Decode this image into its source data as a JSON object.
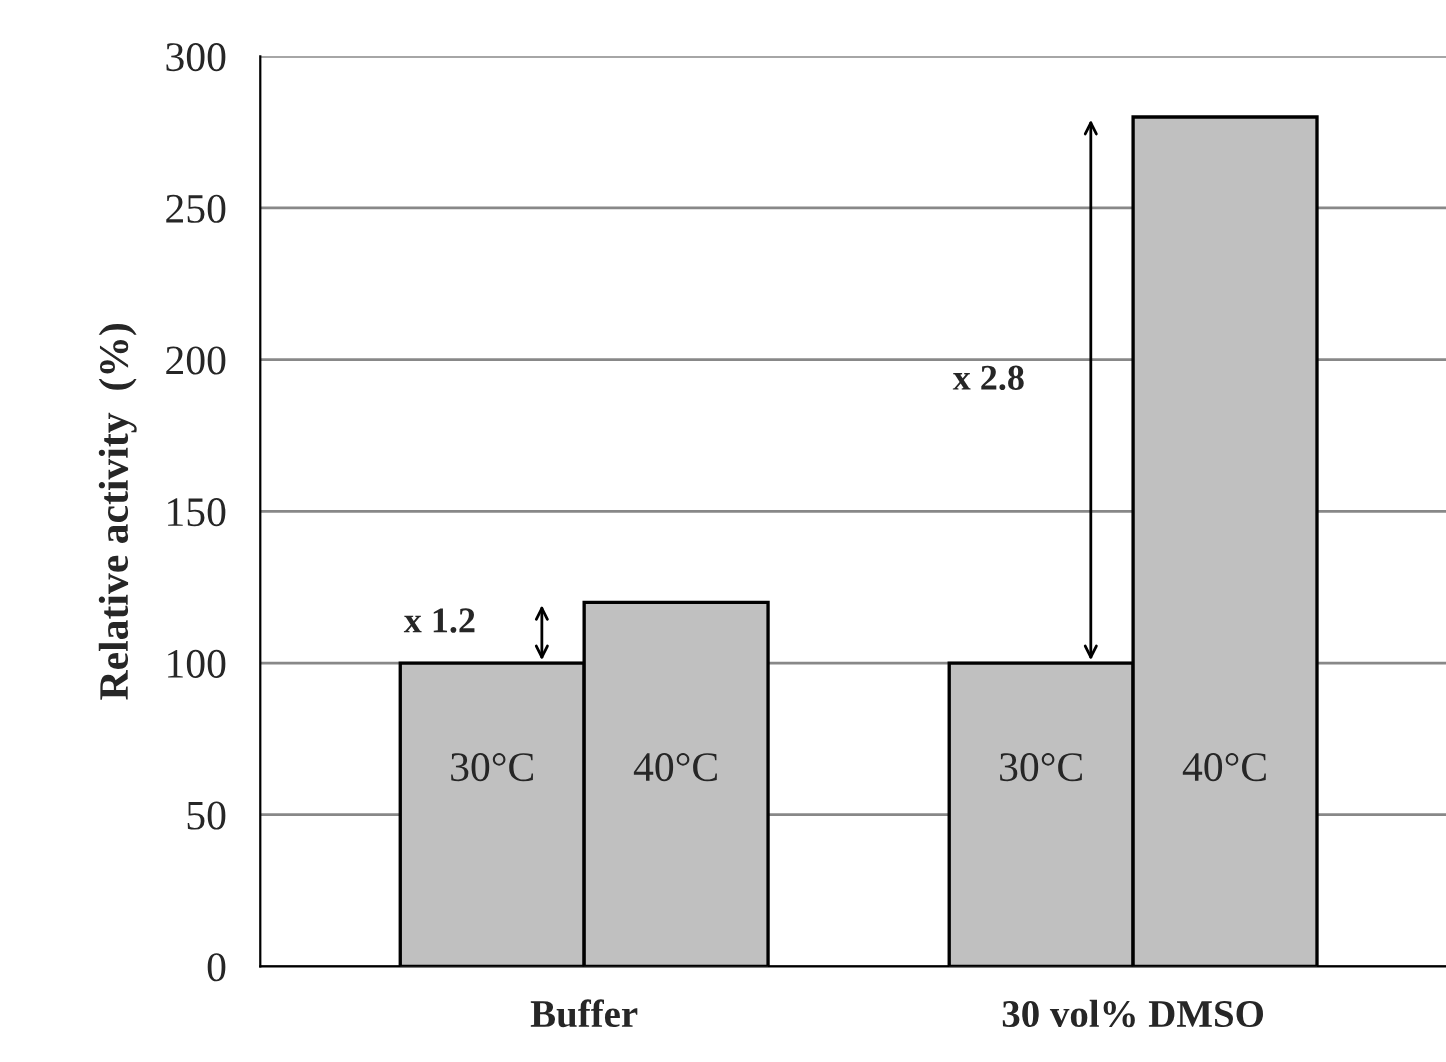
{
  "chart_data": {
    "type": "bar",
    "ylabel": "Relative activity  (%)",
    "categories": [
      "Buffer",
      "30 vol% DMSO"
    ],
    "series": [
      {
        "name": "30°C",
        "color": "#c0c0c0",
        "values": [
          100,
          100
        ]
      },
      {
        "name": "40°C",
        "color": "#c0c0c0",
        "values": [
          120,
          280
        ]
      }
    ],
    "annotations": [
      "x 1.2",
      "x 2.8"
    ],
    "ylim": [
      0,
      300
    ],
    "yticks": [
      0,
      50,
      100,
      150,
      200,
      250,
      300
    ],
    "grid": "y",
    "legend": false
  }
}
